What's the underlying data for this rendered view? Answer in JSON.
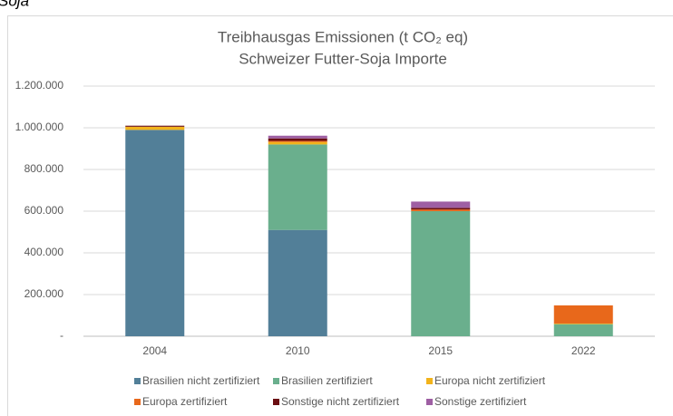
{
  "heading": "Soja",
  "chart_data": {
    "type": "stacked_bar",
    "title": "Treibhausgas Emissionen (t CO₂ eq)",
    "subtitle": "Schweizer Futter-Soja Importe",
    "categories": [
      "2004",
      "2010",
      "2015",
      "2022"
    ],
    "series": [
      {
        "name": "Brasilien nicht zertifiziert",
        "color": "#527f98",
        "values": [
          990000,
          510000,
          0,
          0
        ]
      },
      {
        "name": "Brasilien zertifiziert",
        "color": "#6aaf8d",
        "values": [
          0,
          410000,
          600000,
          58000
        ]
      },
      {
        "name": "Europa nicht zertifiziert",
        "color": "#f2b31b",
        "values": [
          15000,
          12000,
          0,
          3000
        ]
      },
      {
        "name": "Europa zertifiziert",
        "color": "#e8681b",
        "values": [
          0,
          5000,
          8000,
          87000
        ]
      },
      {
        "name": "Sonstige nicht zertifiziert",
        "color": "#6b0f12",
        "values": [
          5000,
          12000,
          8000,
          0
        ]
      },
      {
        "name": "Sonstige zertifiziert",
        "color": "#9e5fa3",
        "values": [
          0,
          13000,
          30000,
          0
        ]
      }
    ],
    "ylim": [
      0,
      1200000
    ],
    "yticks": [
      {
        "value": 0,
        "label": "-"
      },
      {
        "value": 200000,
        "label": "200.000"
      },
      {
        "value": 400000,
        "label": "400.000"
      },
      {
        "value": 600000,
        "label": "600.000"
      },
      {
        "value": 800000,
        "label": "800.000"
      },
      {
        "value": 1000000,
        "label": "1.000.000"
      },
      {
        "value": 1200000,
        "label": "1.200.000"
      }
    ],
    "grid": true,
    "legend": "bottom"
  }
}
